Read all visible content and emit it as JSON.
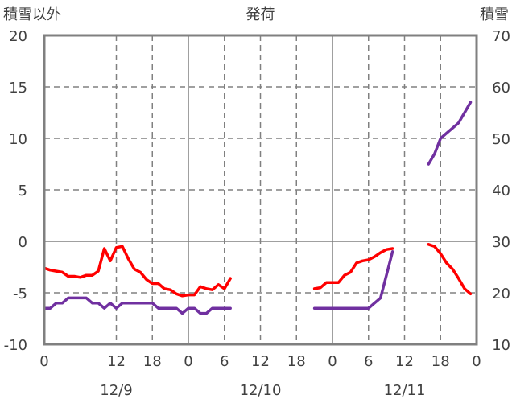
{
  "chart_data": {
    "type": "line",
    "title": "発荷",
    "left_axis_label": "積雪以外",
    "right_axis_label": "積雪",
    "left_ylim": [
      -10,
      20
    ],
    "left_yticks": [
      "20",
      "15",
      "10",
      "5",
      "0",
      "-5",
      "-10"
    ],
    "right_ylim": [
      10,
      70
    ],
    "right_yticks": [
      "70",
      "60",
      "50",
      "40",
      "30",
      "20",
      "10"
    ],
    "xlim_hours": [
      0,
      72
    ],
    "x_tick_labels": [
      "0",
      "12",
      "18",
      "0",
      "6",
      "12",
      "18",
      "0",
      "6",
      "12",
      "18",
      "0"
    ],
    "x_tick_hours": [
      0,
      12,
      18,
      24,
      30,
      36,
      42,
      48,
      54,
      60,
      66,
      72
    ],
    "date_labels": [
      {
        "label": "12/9",
        "hour": 12
      },
      {
        "label": "12/10",
        "hour": 36
      },
      {
        "label": "12/11",
        "hour": 60
      }
    ],
    "grid": true,
    "series": [
      {
        "color": "#ff0000",
        "axis": "left",
        "segments": [
          [
            [
              0,
              -2.6
            ],
            [
              1,
              -2.8
            ],
            [
              2,
              -2.9
            ],
            [
              3,
              -3.0
            ],
            [
              4,
              -3.4
            ],
            [
              5,
              -3.4
            ],
            [
              6,
              -3.5
            ],
            [
              7,
              -3.3
            ],
            [
              8,
              -3.3
            ],
            [
              9,
              -2.9
            ],
            [
              10,
              -0.7
            ],
            [
              11,
              -1.9
            ],
            [
              12,
              -0.6
            ],
            [
              13,
              -0.5
            ],
            [
              14,
              -1.7
            ],
            [
              15,
              -2.7
            ],
            [
              16,
              -3.0
            ],
            [
              17,
              -3.7
            ],
            [
              18,
              -4.1
            ],
            [
              19,
              -4.1
            ],
            [
              20,
              -4.6
            ],
            [
              21,
              -4.7
            ],
            [
              22,
              -5.1
            ],
            [
              23,
              -5.3
            ],
            [
              24,
              -5.2
            ],
            [
              25,
              -5.2
            ],
            [
              26,
              -4.4
            ],
            [
              27,
              -4.6
            ],
            [
              28,
              -4.7
            ],
            [
              29,
              -4.2
            ],
            [
              30,
              -4.6
            ],
            [
              31,
              -3.6
            ]
          ],
          [
            [
              45,
              -4.6
            ],
            [
              46,
              -4.5
            ],
            [
              47,
              -4.0
            ],
            [
              48,
              -4.0
            ],
            [
              49,
              -4.0
            ],
            [
              50,
              -3.3
            ],
            [
              51,
              -3.0
            ],
            [
              52,
              -2.1
            ],
            [
              53,
              -1.9
            ],
            [
              54,
              -1.8
            ],
            [
              55,
              -1.5
            ],
            [
              56,
              -1.1
            ],
            [
              57,
              -0.8
            ],
            [
              58,
              -0.7
            ]
          ],
          [
            [
              64,
              -0.3
            ],
            [
              65,
              -0.5
            ],
            [
              66,
              -1.2
            ],
            [
              67,
              -2.1
            ],
            [
              68,
              -2.7
            ],
            [
              69,
              -3.6
            ],
            [
              70,
              -4.6
            ],
            [
              71,
              -5.1
            ]
          ]
        ]
      },
      {
        "color": "#7030a0",
        "axis": "right",
        "segments": [
          [
            [
              0,
              17
            ],
            [
              1,
              17
            ],
            [
              2,
              18
            ],
            [
              3,
              18
            ],
            [
              4,
              19
            ],
            [
              5,
              19
            ],
            [
              6,
              19
            ],
            [
              7,
              19
            ],
            [
              8,
              18
            ],
            [
              9,
              18
            ],
            [
              10,
              17
            ],
            [
              11,
              18
            ],
            [
              12,
              17
            ],
            [
              13,
              18
            ],
            [
              14,
              18
            ],
            [
              15,
              18
            ],
            [
              16,
              18
            ],
            [
              17,
              18
            ],
            [
              18,
              18
            ],
            [
              19,
              17
            ],
            [
              20,
              17
            ],
            [
              21,
              17
            ],
            [
              22,
              17
            ],
            [
              23,
              16
            ],
            [
              24,
              17
            ],
            [
              25,
              17
            ],
            [
              26,
              16
            ],
            [
              27,
              16
            ],
            [
              28,
              17
            ],
            [
              29,
              17
            ],
            [
              30,
              17
            ],
            [
              31,
              17
            ]
          ],
          [
            [
              45,
              17
            ],
            [
              46,
              17
            ],
            [
              47,
              17
            ],
            [
              48,
              17
            ],
            [
              49,
              17
            ],
            [
              50,
              17
            ],
            [
              51,
              17
            ],
            [
              52,
              17
            ],
            [
              53,
              17
            ],
            [
              54,
              17
            ],
            [
              55,
              18
            ],
            [
              56,
              19
            ],
            [
              58,
              28
            ]
          ],
          [
            [
              64,
              45
            ],
            [
              65,
              47
            ],
            [
              66,
              50
            ],
            [
              67,
              51
            ],
            [
              68,
              52
            ],
            [
              69,
              53
            ],
            [
              70,
              55
            ],
            [
              71,
              57
            ]
          ]
        ]
      }
    ]
  }
}
